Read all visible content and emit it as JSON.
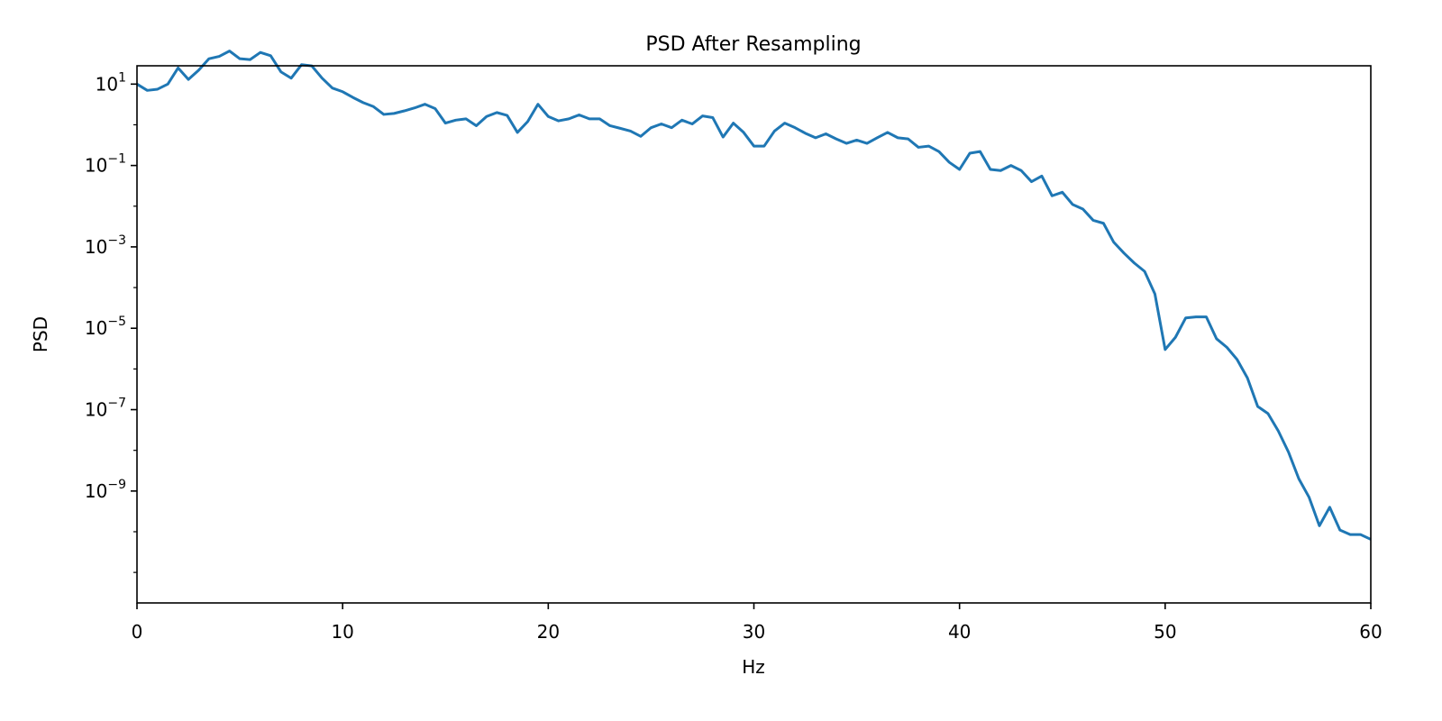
{
  "chart_data": {
    "type": "line",
    "title": "PSD After Resampling",
    "xlabel": "Hz",
    "ylabel": "PSD",
    "xscale": "linear",
    "yscale": "log",
    "xlim": [
      0,
      60
    ],
    "ylim_exponent": [
      -11.75,
      1.45
    ],
    "grid": false,
    "line_color": "#1f77b4",
    "x_ticks": [
      {
        "value": 0,
        "label": "0"
      },
      {
        "value": 10,
        "label": "10"
      },
      {
        "value": 20,
        "label": "20"
      },
      {
        "value": 30,
        "label": "30"
      },
      {
        "value": 40,
        "label": "40"
      },
      {
        "value": 50,
        "label": "50"
      },
      {
        "value": 60,
        "label": "60"
      }
    ],
    "y_ticks": [
      {
        "exponent": 1,
        "base": "10",
        "sup": "1"
      },
      {
        "exponent": -1,
        "base": "10",
        "sup": "−1"
      },
      {
        "exponent": -3,
        "base": "10",
        "sup": "−3"
      },
      {
        "exponent": -5,
        "base": "10",
        "sup": "−5"
      },
      {
        "exponent": -7,
        "base": "10",
        "sup": "−7"
      },
      {
        "exponent": -9,
        "base": "10",
        "sup": "−9"
      }
    ],
    "series": [
      {
        "x": [
          0,
          0.5,
          1,
          1.5,
          2,
          2.5,
          3,
          3.5,
          4,
          4.5,
          5,
          5.5,
          6,
          6.5,
          7,
          7.5,
          8,
          8.5,
          9,
          9.5,
          10,
          10.5,
          11,
          11.5,
          12,
          12.5,
          13,
          13.5,
          14,
          14.5,
          15,
          15.5,
          16,
          16.5,
          17,
          17.5,
          18,
          18.5,
          19,
          19.5,
          20,
          20.5,
          21,
          21.5,
          22,
          22.5,
          23,
          23.5,
          24,
          24.5,
          25,
          25.5,
          26,
          26.5,
          27,
          27.5,
          28,
          28.5,
          29,
          29.5,
          30,
          30.5,
          31,
          31.5,
          32,
          32.5,
          33,
          33.5,
          34,
          34.5,
          35,
          35.5,
          36,
          36.5,
          37,
          37.5,
          38,
          38.5,
          39,
          39.5,
          40,
          40.5,
          41,
          41.5,
          42,
          42.5,
          43,
          43.5,
          44,
          44.5,
          45,
          45.5,
          46,
          46.5,
          47,
          47.5,
          48,
          48.5,
          49,
          49.5,
          50,
          50.5,
          51,
          51.5,
          52,
          52.5,
          53,
          53.5,
          54,
          54.5,
          55,
          55.5,
          56,
          56.5,
          57,
          57.5,
          58,
          58.5,
          59,
          59.5,
          60
        ],
        "y": [
          10,
          7,
          7.5,
          10,
          25,
          13,
          22,
          42,
          48,
          65,
          42,
          40,
          60,
          50,
          20,
          14,
          30,
          28,
          14,
          8,
          6.5,
          4.7,
          3.5,
          2.8,
          1.8,
          1.9,
          2.2,
          2.6,
          3.2,
          2.5,
          1.1,
          1.3,
          1.4,
          0.95,
          1.6,
          2.0,
          1.7,
          0.65,
          1.2,
          3.2,
          1.6,
          1.25,
          1.4,
          1.75,
          1.4,
          1.4,
          0.95,
          0.82,
          0.7,
          0.52,
          0.85,
          1.05,
          0.85,
          1.3,
          1.05,
          1.65,
          1.5,
          0.5,
          1.1,
          0.65,
          0.3,
          0.3,
          0.7,
          1.1,
          0.85,
          0.62,
          0.48,
          0.6,
          0.45,
          0.35,
          0.42,
          0.35,
          0.48,
          0.65,
          0.48,
          0.45,
          0.28,
          0.3,
          0.22,
          0.12,
          0.08,
          0.2,
          0.22,
          0.08,
          0.075,
          0.1,
          0.075,
          0.04,
          0.055,
          0.018,
          0.022,
          0.011,
          0.0085,
          0.0045,
          0.0038,
          0.0013,
          0.0007,
          0.0004,
          0.00025,
          7e-05,
          3e-06,
          6e-06,
          1.8e-05,
          1.9e-05,
          1.9e-05,
          5.5e-06,
          3.4e-06,
          1.7e-06,
          6e-07,
          1.2e-07,
          8e-08,
          3e-08,
          9e-09,
          2e-09,
          7e-10,
          1.4e-10,
          4e-10,
          1.1e-10,
          8.5e-11,
          8.5e-11,
          6.5e-11
        ]
      }
    ]
  }
}
